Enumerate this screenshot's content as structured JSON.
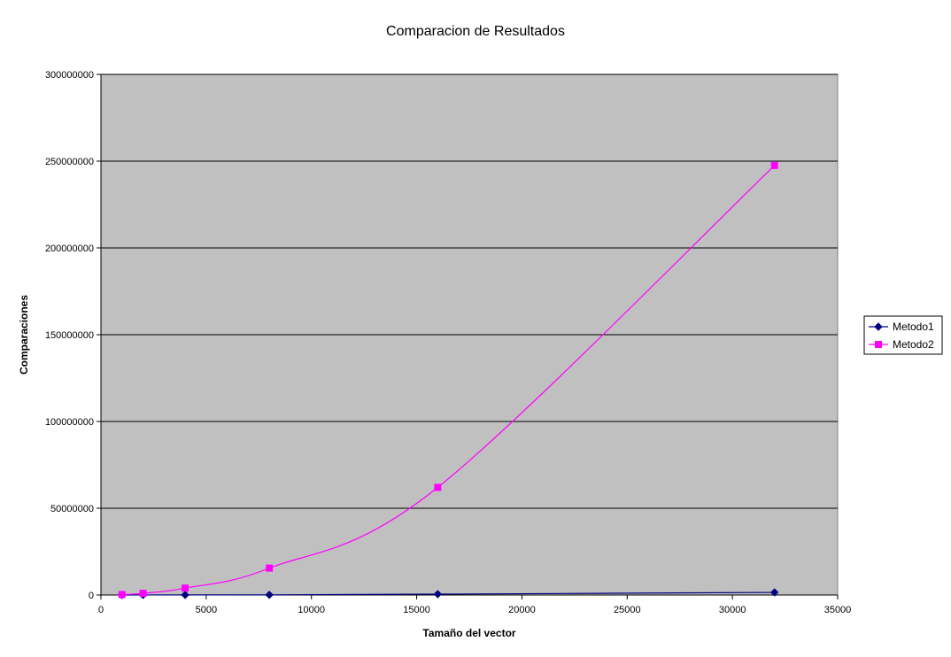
{
  "chart_data": {
    "type": "scatter",
    "title": "Comparacion de Resultados",
    "xlabel": "Tamaño del vector",
    "ylabel": "Comparaciones",
    "xlim": [
      0,
      35000
    ],
    "ylim": [
      0,
      300000000
    ],
    "x_ticks": [
      0,
      5000,
      10000,
      15000,
      20000,
      25000,
      30000,
      35000
    ],
    "y_ticks": [
      0,
      50000000,
      100000000,
      150000000,
      200000000,
      250000000,
      300000000
    ],
    "x_tick_labels": [
      "0",
      "5000",
      "10000",
      "15000",
      "20000",
      "25000",
      "30000",
      "35000"
    ],
    "y_tick_labels": [
      "0",
      "50000000",
      "100000000",
      "150000000",
      "200000000",
      "250000000",
      "300000000"
    ],
    "grid": "horizontal",
    "legend": "right",
    "plot_background": "#c0c0c0",
    "series": [
      {
        "name": "Metodo1",
        "color": "#000080",
        "marker": "diamond",
        "x": [
          1000,
          2000,
          4000,
          8000,
          16000,
          32000
        ],
        "y": [
          10000,
          20000,
          50000,
          100000,
          500000,
          1500000
        ]
      },
      {
        "name": "Metodo2",
        "color": "#ff00ff",
        "marker": "square",
        "x": [
          1000,
          2000,
          4000,
          8000,
          16000,
          32000
        ],
        "y": [
          250000,
          1000000,
          4000000,
          15500000,
          62000000,
          247500000
        ]
      }
    ]
  }
}
